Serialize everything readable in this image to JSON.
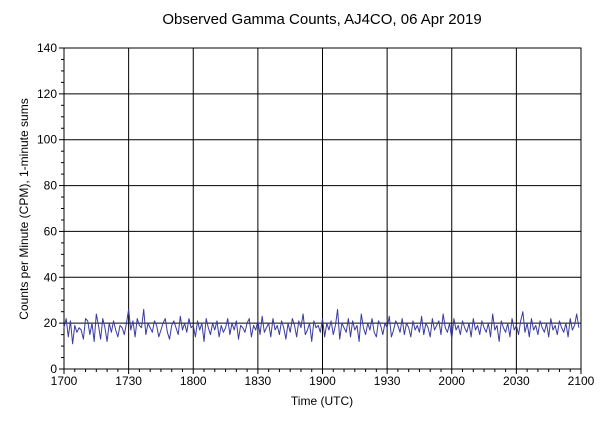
{
  "chart_data": {
    "type": "line",
    "title": "Observed Gamma Counts, AJ4CO, 06 Apr 2019",
    "xlabel": "Time (UTC)",
    "ylabel": "Counts per Minute (CPM), 1-minute sums",
    "x_tick_labels": [
      "1700",
      "1730",
      "1800",
      "1830",
      "1900",
      "1930",
      "2000",
      "2030",
      "2100"
    ],
    "y_tick_labels": [
      "0",
      "20",
      "40",
      "60",
      "80",
      "100",
      "120",
      "140"
    ],
    "xlim_minutes": [
      0,
      240
    ],
    "ylim": [
      0,
      140
    ],
    "grid": true,
    "series": [
      {
        "color": "#3a3aa0",
        "x_minutes_from_1700": [
          0,
          1,
          2,
          3,
          4,
          5,
          6,
          7,
          8,
          9,
          10,
          11,
          12,
          13,
          14,
          15,
          16,
          17,
          18,
          19,
          20,
          21,
          22,
          23,
          24,
          25,
          26,
          27,
          28,
          29,
          30,
          31,
          32,
          33,
          34,
          35,
          36,
          37,
          38,
          39,
          40,
          41,
          42,
          43,
          44,
          45,
          46,
          47,
          48,
          49,
          50,
          51,
          52,
          53,
          54,
          55,
          56,
          57,
          58,
          59,
          60,
          61,
          62,
          63,
          64,
          65,
          66,
          67,
          68,
          69,
          70,
          71,
          72,
          73,
          74,
          75,
          76,
          77,
          78,
          79,
          80,
          81,
          82,
          83,
          84,
          85,
          86,
          87,
          88,
          89,
          90,
          91,
          92,
          93,
          94,
          95,
          96,
          97,
          98,
          99,
          100,
          101,
          102,
          103,
          104,
          105,
          106,
          107,
          108,
          109,
          110,
          111,
          112,
          113,
          114,
          115,
          116,
          117,
          118,
          119,
          120,
          121,
          122,
          123,
          124,
          125,
          126,
          127,
          128,
          129,
          130,
          131,
          132,
          133,
          134,
          135,
          136,
          137,
          138,
          139,
          140,
          141,
          142,
          143,
          144,
          145,
          146,
          147,
          148,
          149,
          150,
          151,
          152,
          153,
          154,
          155,
          156,
          157,
          158,
          159,
          160,
          161,
          162,
          163,
          164,
          165,
          166,
          167,
          168,
          169,
          170,
          171,
          172,
          173,
          174,
          175,
          176,
          177,
          178,
          179,
          180,
          181,
          182,
          183,
          184,
          185,
          186,
          187,
          188,
          189,
          190,
          191,
          192,
          193,
          194,
          195,
          196,
          197,
          198,
          199,
          200,
          201,
          202,
          203,
          204,
          205,
          206,
          207,
          208,
          209,
          210,
          211,
          212,
          213,
          214,
          215,
          216,
          217,
          218,
          219,
          220,
          221,
          222,
          223,
          224,
          225,
          226,
          227,
          228,
          229,
          230,
          231,
          232,
          233,
          234,
          235,
          236,
          237,
          238,
          239,
          240
        ],
        "values": [
          18,
          22,
          14,
          21,
          11,
          19,
          16,
          18,
          17,
          13,
          22,
          21,
          15,
          20,
          12,
          24,
          19,
          13,
          22,
          18,
          12,
          20,
          16,
          21,
          17,
          14,
          19,
          18,
          15,
          20,
          26,
          17,
          21,
          14,
          22,
          19,
          18,
          26,
          15,
          20,
          18,
          16,
          21,
          19,
          14,
          17,
          20,
          22,
          16,
          13,
          19,
          21,
          18,
          15,
          23,
          17,
          20,
          16,
          22,
          18,
          19,
          14,
          21,
          17,
          20,
          12,
          22,
          18,
          15,
          20,
          17,
          21,
          14,
          19,
          16,
          18,
          22,
          15,
          20,
          17,
          21,
          13,
          19,
          18,
          16,
          20,
          22,
          14,
          19,
          17,
          21,
          15,
          23,
          16,
          18,
          20,
          14,
          22,
          17,
          19,
          15,
          21,
          18,
          13,
          20,
          16,
          22,
          19,
          14,
          21,
          18,
          24,
          15,
          17,
          20,
          12,
          21,
          18,
          19,
          16,
          22,
          14,
          20,
          17,
          21,
          15,
          19,
          26,
          13,
          20,
          18,
          16,
          22,
          14,
          21,
          17,
          19,
          12,
          24,
          18,
          15,
          20,
          17,
          22,
          16,
          14,
          21,
          19,
          15,
          20,
          18,
          23,
          14,
          17,
          21,
          19,
          16,
          22,
          15,
          20,
          18,
          14,
          21,
          17,
          19,
          16,
          23,
          15,
          20,
          18,
          14,
          22,
          17,
          19,
          21,
          15,
          24,
          18,
          16,
          20,
          13,
          22,
          17,
          19,
          15,
          21,
          18,
          16,
          20,
          14,
          22,
          17,
          19,
          15,
          21,
          18,
          16,
          20,
          14,
          24,
          17,
          19,
          12,
          21,
          18,
          16,
          20,
          14,
          22,
          17,
          19,
          15,
          21,
          25,
          16,
          20,
          14,
          22,
          17,
          19,
          15,
          21,
          18,
          16,
          20,
          14,
          22,
          17,
          19,
          15,
          21,
          18,
          16,
          20,
          14,
          22,
          17,
          19,
          24,
          18
        ]
      }
    ]
  }
}
